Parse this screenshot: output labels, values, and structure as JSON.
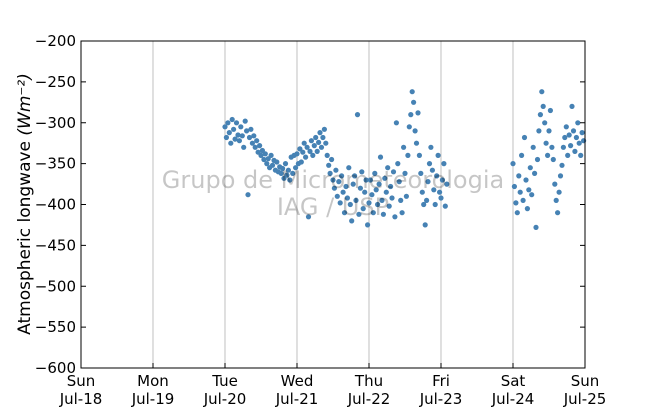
{
  "chart_data": {
    "type": "scatter",
    "title": "",
    "xlabel": "",
    "ylabel": "Atmospheric longwave",
    "ylabel_unit": "(Wm⁻²)",
    "ylim": [
      -600,
      -200
    ],
    "yticks": [
      -200,
      -250,
      -300,
      -350,
      -400,
      -450,
      -500,
      -550,
      -600
    ],
    "xlim": [
      "2010-07-18",
      "2010-07-25"
    ],
    "xticks": [
      {
        "day": "Sun",
        "date": "Jul-18"
      },
      {
        "day": "Mon",
        "date": "Jul-19"
      },
      {
        "day": "Tue",
        "date": "Jul-20"
      },
      {
        "day": "Wed",
        "date": "Jul-21"
      },
      {
        "day": "Thu",
        "date": "Jul-22"
      },
      {
        "day": "Fri",
        "date": "Jul-23"
      },
      {
        "day": "Sat",
        "date": "Jul-24"
      },
      {
        "day": "Sun",
        "date": "Jul-25"
      }
    ],
    "grid": "vertical",
    "marker_color": "#4682b4",
    "series": [
      {
        "x_unit": "days since Jul-18 00:00",
        "points": [
          [
            2.0,
            -305
          ],
          [
            2.02,
            -318
          ],
          [
            2.04,
            -300
          ],
          [
            2.06,
            -312
          ],
          [
            2.08,
            -325
          ],
          [
            2.1,
            -296
          ],
          [
            2.12,
            -308
          ],
          [
            2.14,
            -320
          ],
          [
            2.16,
            -300
          ],
          [
            2.18,
            -315
          ],
          [
            2.2,
            -322
          ],
          [
            2.22,
            -305
          ],
          [
            2.24,
            -316
          ],
          [
            2.26,
            -330
          ],
          [
            2.28,
            -298
          ],
          [
            2.3,
            -310
          ],
          [
            2.32,
            -388
          ],
          [
            2.34,
            -318
          ],
          [
            2.36,
            -308
          ],
          [
            2.38,
            -325
          ],
          [
            2.4,
            -316
          ],
          [
            2.42,
            -330
          ],
          [
            2.44,
            -322
          ],
          [
            2.46,
            -336
          ],
          [
            2.48,
            -328
          ],
          [
            2.5,
            -340
          ],
          [
            2.52,
            -334
          ],
          [
            2.54,
            -345
          ],
          [
            2.56,
            -338
          ],
          [
            2.58,
            -350
          ],
          [
            2.6,
            -344
          ],
          [
            2.62,
            -355
          ],
          [
            2.64,
            -340
          ],
          [
            2.66,
            -352
          ],
          [
            2.68,
            -346
          ],
          [
            2.7,
            -358
          ],
          [
            2.72,
            -348
          ],
          [
            2.74,
            -360
          ],
          [
            2.76,
            -354
          ],
          [
            2.78,
            -362
          ],
          [
            2.8,
            -356
          ],
          [
            2.82,
            -368
          ],
          [
            2.84,
            -350
          ],
          [
            2.86,
            -364
          ],
          [
            2.88,
            -358
          ],
          [
            2.9,
            -370
          ],
          [
            2.92,
            -342
          ],
          [
            2.94,
            -362
          ],
          [
            2.96,
            -340
          ],
          [
            2.98,
            -355
          ],
          [
            3.0,
            -338
          ],
          [
            3.02,
            -350
          ],
          [
            3.04,
            -332
          ],
          [
            3.06,
            -348
          ],
          [
            3.08,
            -336
          ],
          [
            3.1,
            -325
          ],
          [
            3.12,
            -342
          ],
          [
            3.14,
            -330
          ],
          [
            3.16,
            -415
          ],
          [
            3.18,
            -335
          ],
          [
            3.2,
            -322
          ],
          [
            3.22,
            -340
          ],
          [
            3.24,
            -328
          ],
          [
            3.26,
            -318
          ],
          [
            3.28,
            -335
          ],
          [
            3.3,
            -324
          ],
          [
            3.32,
            -312
          ],
          [
            3.34,
            -330
          ],
          [
            3.36,
            -318
          ],
          [
            3.38,
            -308
          ],
          [
            3.4,
            -325
          ],
          [
            3.42,
            -340
          ],
          [
            3.44,
            -352
          ],
          [
            3.46,
            -362
          ],
          [
            3.48,
            -345
          ],
          [
            3.5,
            -370
          ],
          [
            3.52,
            -380
          ],
          [
            3.54,
            -358
          ],
          [
            3.56,
            -390
          ],
          [
            3.58,
            -372
          ],
          [
            3.6,
            -398
          ],
          [
            3.62,
            -365
          ],
          [
            3.64,
            -385
          ],
          [
            3.66,
            -410
          ],
          [
            3.68,
            -378
          ],
          [
            3.7,
            -392
          ],
          [
            3.72,
            -355
          ],
          [
            3.74,
            -400
          ],
          [
            3.76,
            -420
          ],
          [
            3.78,
            -375
          ],
          [
            3.8,
            -365
          ],
          [
            3.82,
            -395
          ],
          [
            3.84,
            -290
          ],
          [
            3.86,
            -412
          ],
          [
            3.88,
            -380
          ],
          [
            3.9,
            -360
          ],
          [
            3.92,
            -405
          ],
          [
            3.94,
            -385
          ],
          [
            3.96,
            -370
          ],
          [
            3.98,
            -425
          ],
          [
            4.0,
            -398
          ],
          [
            4.02,
            -370
          ],
          [
            4.04,
            -388
          ],
          [
            4.06,
            -410
          ],
          [
            4.08,
            -362
          ],
          [
            4.1,
            -382
          ],
          [
            4.12,
            -400
          ],
          [
            4.14,
            -375
          ],
          [
            4.16,
            -342
          ],
          [
            4.18,
            -395
          ],
          [
            4.2,
            -412
          ],
          [
            4.22,
            -368
          ],
          [
            4.24,
            -385
          ],
          [
            4.26,
            -355
          ],
          [
            4.28,
            -402
          ],
          [
            4.3,
            -378
          ],
          [
            4.32,
            -392
          ],
          [
            4.34,
            -360
          ],
          [
            4.36,
            -415
          ],
          [
            4.38,
            -300
          ],
          [
            4.4,
            -350
          ],
          [
            4.42,
            -372
          ],
          [
            4.44,
            -395
          ],
          [
            4.46,
            -410
          ],
          [
            4.48,
            -330
          ],
          [
            4.5,
            -362
          ],
          [
            4.52,
            -390
          ],
          [
            4.54,
            -340
          ],
          [
            4.56,
            -305
          ],
          [
            4.58,
            -290
          ],
          [
            4.6,
            -262
          ],
          [
            4.62,
            -275
          ],
          [
            4.64,
            -310
          ],
          [
            4.66,
            -325
          ],
          [
            4.68,
            -288
          ],
          [
            4.7,
            -340
          ],
          [
            4.72,
            -362
          ],
          [
            4.74,
            -385
          ],
          [
            4.76,
            -400
          ],
          [
            4.78,
            -425
          ],
          [
            4.8,
            -395
          ],
          [
            4.82,
            -372
          ],
          [
            4.84,
            -350
          ],
          [
            4.86,
            -330
          ],
          [
            4.88,
            -358
          ],
          [
            4.9,
            -382
          ],
          [
            4.92,
            -400
          ],
          [
            4.94,
            -365
          ],
          [
            4.96,
            -340
          ],
          [
            4.98,
            -385
          ],
          [
            5.0,
            -392
          ],
          [
            5.02,
            -370
          ],
          [
            5.04,
            -350
          ],
          [
            5.06,
            -402
          ],
          [
            5.08,
            -375
          ],
          [
            6.0,
            -350
          ],
          [
            6.02,
            -378
          ],
          [
            6.04,
            -398
          ],
          [
            6.06,
            -410
          ],
          [
            6.08,
            -365
          ],
          [
            6.1,
            -385
          ],
          [
            6.12,
            -340
          ],
          [
            6.14,
            -395
          ],
          [
            6.16,
            -318
          ],
          [
            6.18,
            -370
          ],
          [
            6.2,
            -405
          ],
          [
            6.22,
            -382
          ],
          [
            6.24,
            -355
          ],
          [
            6.26,
            -388
          ],
          [
            6.28,
            -330
          ],
          [
            6.3,
            -362
          ],
          [
            6.32,
            -428
          ],
          [
            6.34,
            -345
          ],
          [
            6.36,
            -310
          ],
          [
            6.38,
            -290
          ],
          [
            6.4,
            -262
          ],
          [
            6.42,
            -280
          ],
          [
            6.44,
            -300
          ],
          [
            6.46,
            -325
          ],
          [
            6.48,
            -340
          ],
          [
            6.5,
            -310
          ],
          [
            6.52,
            -285
          ],
          [
            6.54,
            -330
          ],
          [
            6.56,
            -345
          ],
          [
            6.58,
            -375
          ],
          [
            6.6,
            -395
          ],
          [
            6.62,
            -410
          ],
          [
            6.64,
            -385
          ],
          [
            6.66,
            -365
          ],
          [
            6.68,
            -352
          ],
          [
            6.7,
            -330
          ],
          [
            6.72,
            -318
          ],
          [
            6.74,
            -305
          ],
          [
            6.76,
            -340
          ],
          [
            6.78,
            -315
          ],
          [
            6.8,
            -328
          ],
          [
            6.82,
            -280
          ],
          [
            6.84,
            -310
          ],
          [
            6.86,
            -335
          ],
          [
            6.88,
            -318
          ],
          [
            6.9,
            -300
          ],
          [
            6.92,
            -325
          ],
          [
            6.94,
            -340
          ],
          [
            6.96,
            -312
          ],
          [
            6.98,
            -322
          ]
        ]
      }
    ]
  },
  "watermark": {
    "line1": "Grupo de Micrometeorologia",
    "line2": "IAG / USP"
  },
  "colors": {
    "marker": "#4682b4",
    "gridline": "#b0b0b0",
    "watermark": "#000000"
  }
}
